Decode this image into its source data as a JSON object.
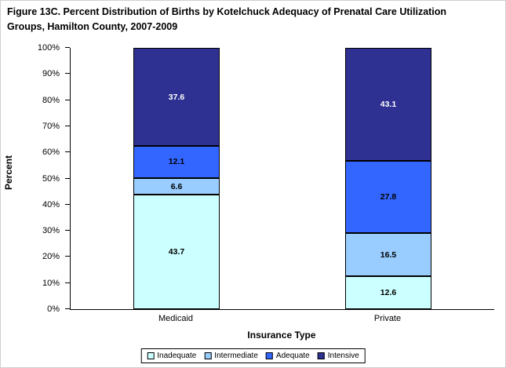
{
  "title_line1": "Figure 13C. Percent Distribution of Births by Kotelchuck Adequacy of Prenatal Care Utilization",
  "title_line2": "Groups, Hamilton County, 2007-2009",
  "chart_data": {
    "type": "bar",
    "stacked": true,
    "title": "Figure 13C. Percent Distribution of Births by Kotelchuck Adequacy of Prenatal Care Utilization Groups, Hamilton County, 2007-2009",
    "categories": [
      "Medicaid",
      "Private"
    ],
    "series": [
      {
        "name": "Inadequate",
        "color": "#CCFFFF",
        "label_color": "#000000",
        "values": [
          43.7,
          12.6
        ]
      },
      {
        "name": "Intermediate",
        "color": "#99CCFF",
        "label_color": "#000000",
        "values": [
          6.6,
          16.5
        ]
      },
      {
        "name": "Adequate",
        "color": "#3366FF",
        "label_color": "#000000",
        "values": [
          12.1,
          27.8
        ]
      },
      {
        "name": "Intensive",
        "color": "#2E3191",
        "label_color": "#FFFFFF",
        "values": [
          37.6,
          43.1
        ]
      }
    ],
    "xlabel": "Insurance Type",
    "ylabel": "Percent",
    "ylim": [
      0,
      100
    ],
    "yticks": [
      "0%",
      "10%",
      "20%",
      "30%",
      "40%",
      "50%",
      "60%",
      "70%",
      "80%",
      "90%",
      "100%"
    ],
    "grid": false,
    "legend_position": "bottom"
  }
}
